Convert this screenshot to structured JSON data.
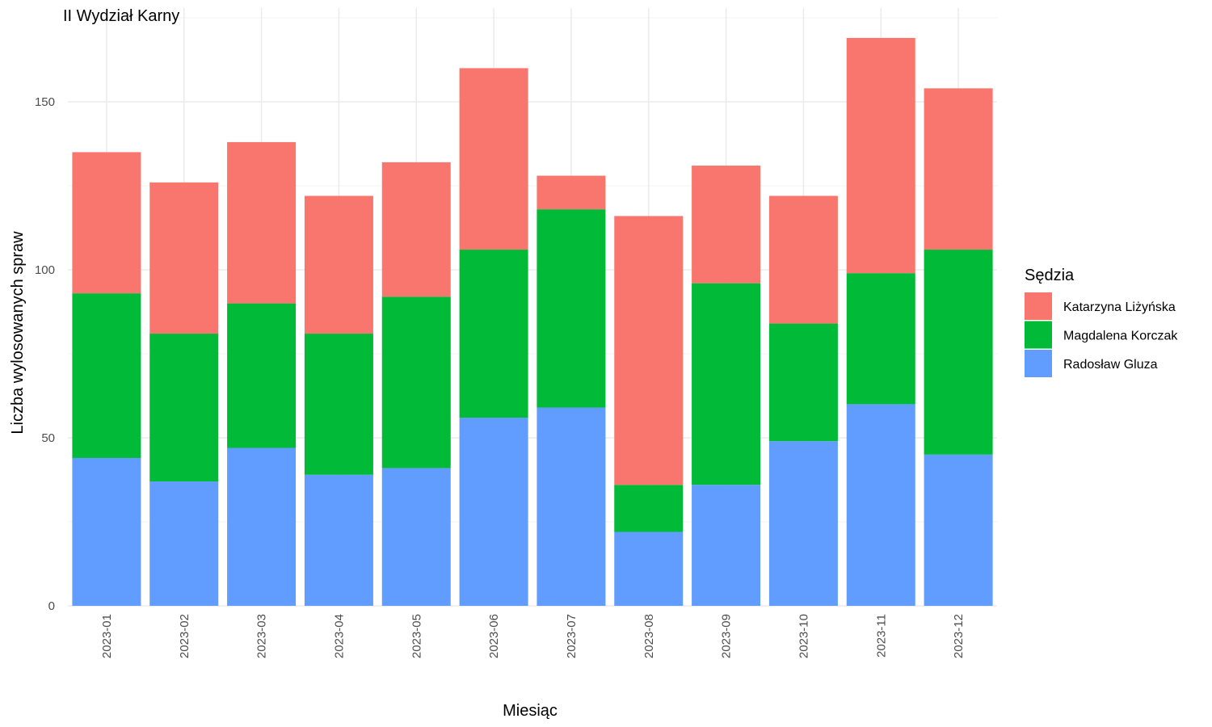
{
  "chart_data": {
    "type": "bar",
    "stacked": true,
    "title": "II Wydział Karny",
    "xlabel": "Miesiąc",
    "ylabel": "Liczba wylosowanych spraw",
    "ylim": [
      0,
      175
    ],
    "yticks": [
      0,
      50,
      100,
      150
    ],
    "grid": true,
    "legend_position": "right",
    "legend_title": "Sędzia",
    "categories": [
      "2023-01",
      "2023-02",
      "2023-03",
      "2023-04",
      "2023-05",
      "2023-06",
      "2023-07",
      "2023-08",
      "2023-09",
      "2023-10",
      "2023-11",
      "2023-12"
    ],
    "series": [
      {
        "name": "Radosław Gluza",
        "color": "#619CFF",
        "values": [
          44,
          37,
          47,
          39,
          41,
          56,
          59,
          22,
          36,
          49,
          60,
          45
        ]
      },
      {
        "name": "Magdalena Korczak",
        "color": "#00BA38",
        "values": [
          49,
          44,
          43,
          42,
          51,
          50,
          59,
          14,
          60,
          35,
          39,
          61
        ]
      },
      {
        "name": "Katarzyna Liżyńska",
        "color": "#F8766D",
        "values": [
          42,
          45,
          48,
          41,
          40,
          54,
          10,
          80,
          35,
          38,
          70,
          48
        ]
      }
    ],
    "legend_order": [
      "Katarzyna Liżyńska",
      "Magdalena Korczak",
      "Radosław Gluza"
    ]
  }
}
